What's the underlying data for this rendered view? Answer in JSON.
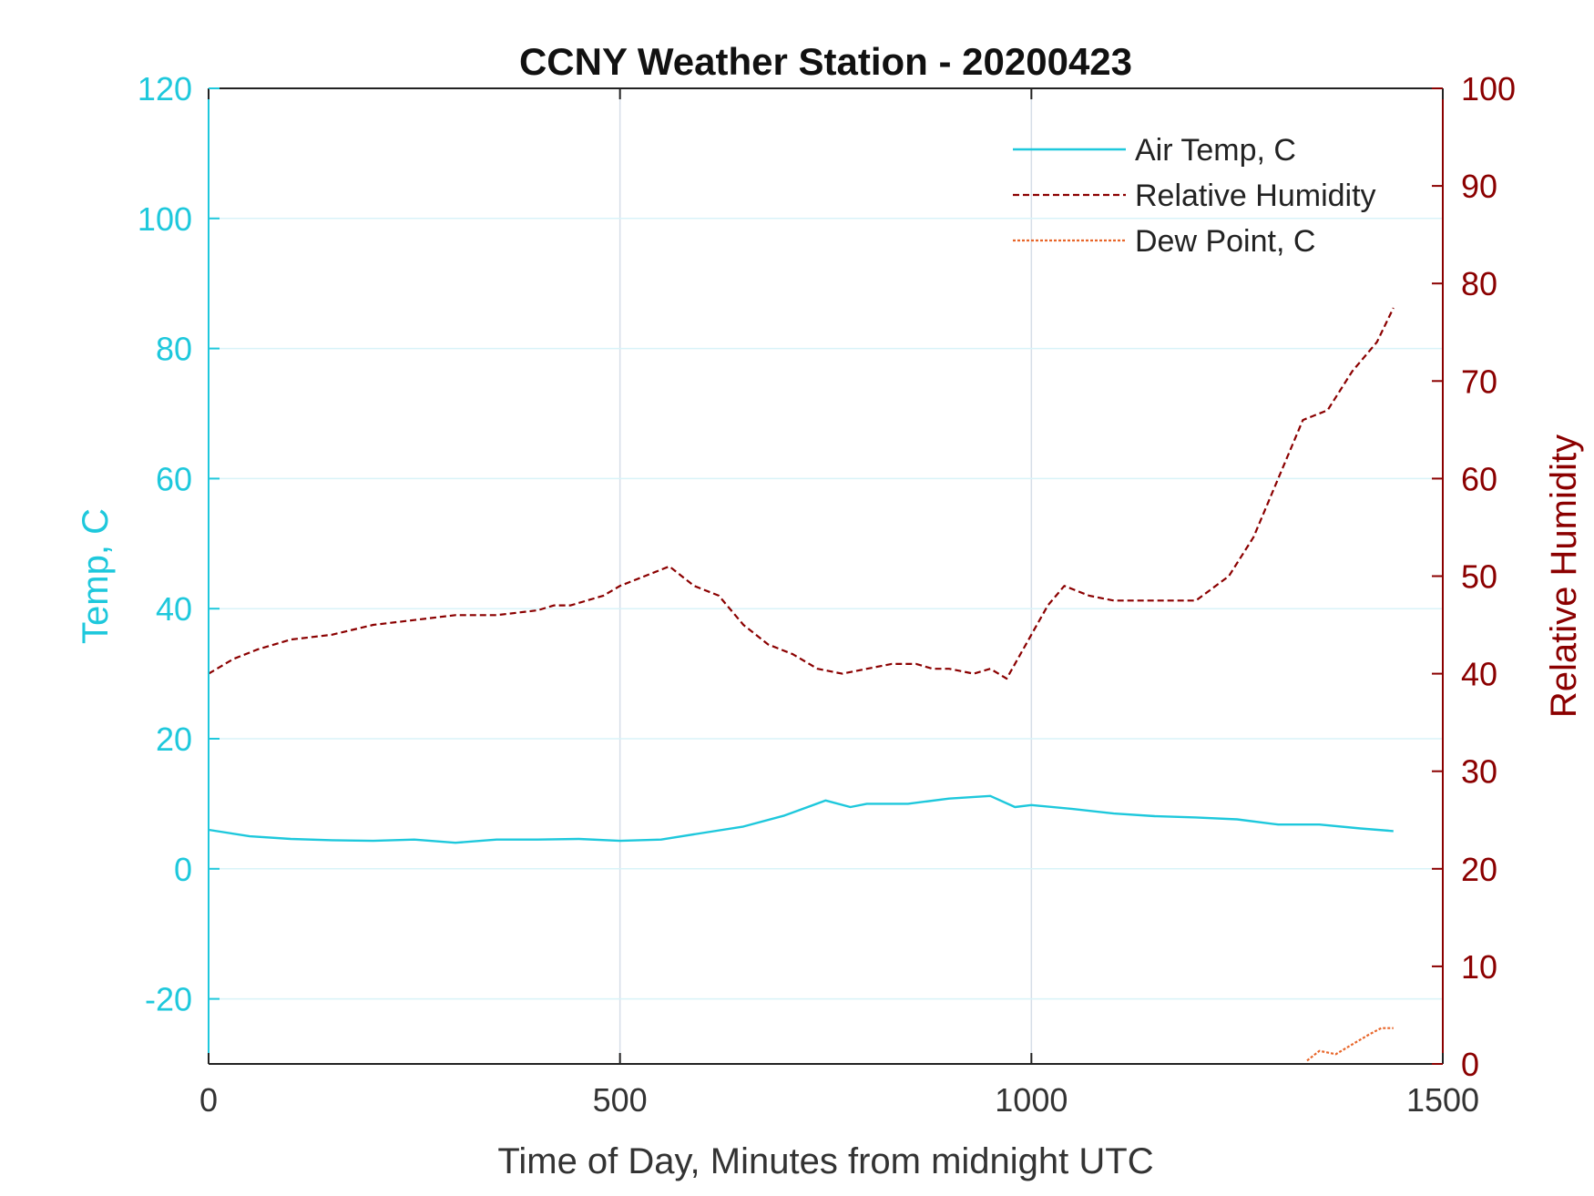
{
  "chart_data": {
    "type": "line",
    "title": "CCNY Weather Station - 20200423",
    "xlabel": "Time of Day, Minutes from midnight UTC",
    "ylabel_left": "Temp, C",
    "ylabel_right": "Relative Humidity",
    "xlim": [
      0,
      1500
    ],
    "ylim_left": [
      -30,
      120
    ],
    "ylim_right": [
      0,
      100
    ],
    "x_ticks": [
      "0",
      "500",
      "1000",
      "1500"
    ],
    "y_left_ticks": [
      "-20",
      "0",
      "20",
      "40",
      "60",
      "80",
      "100",
      "120"
    ],
    "y_right_ticks": [
      "0",
      "10",
      "20",
      "30",
      "40",
      "50",
      "60",
      "70",
      "80",
      "90",
      "100"
    ],
    "grid": true,
    "legend_location": "top-right",
    "colors": {
      "left_axis": "#1ec8dc",
      "right_axis": "#8b0000",
      "air_temp": "#1ec8dc",
      "rh": "#8b0000",
      "dew_point": "#e8662a",
      "grid": "#d6dee8"
    },
    "series": [
      {
        "name": "Air Temp, C",
        "axis": "left",
        "style": "solid",
        "x": [
          0,
          50,
          100,
          150,
          200,
          250,
          300,
          350,
          400,
          450,
          500,
          550,
          600,
          650,
          700,
          750,
          780,
          800,
          850,
          900,
          950,
          980,
          1000,
          1050,
          1100,
          1150,
          1200,
          1250,
          1300,
          1350,
          1400,
          1440
        ],
        "y": [
          6,
          5,
          4.6,
          4.4,
          4.3,
          4.5,
          4,
          4.5,
          4.5,
          4.6,
          4.3,
          4.5,
          5.5,
          6.5,
          8.2,
          10.5,
          9.5,
          10,
          10,
          10.8,
          11.2,
          9.5,
          9.8,
          9.2,
          8.5,
          8.1,
          7.9,
          7.6,
          6.8,
          6.8,
          6.2,
          5.8
        ]
      },
      {
        "name": "Relative Humidity",
        "axis": "right",
        "style": "dashed",
        "x": [
          0,
          30,
          60,
          100,
          150,
          200,
          250,
          300,
          350,
          400,
          420,
          440,
          480,
          500,
          530,
          560,
          590,
          620,
          650,
          680,
          710,
          740,
          770,
          800,
          830,
          860,
          880,
          900,
          930,
          950,
          970,
          1000,
          1020,
          1040,
          1070,
          1100,
          1150,
          1200,
          1240,
          1270,
          1300,
          1330,
          1360,
          1390,
          1420,
          1440
        ],
        "y": [
          40,
          41.5,
          42.5,
          43.5,
          44,
          45,
          45.5,
          46,
          46,
          46.5,
          47,
          47,
          48,
          49,
          50,
          51,
          49,
          48,
          45,
          43,
          42,
          40.5,
          40,
          40.5,
          41,
          41,
          40.5,
          40.5,
          40,
          40.5,
          39.5,
          44,
          47,
          49,
          48,
          47.5,
          47.5,
          47.5,
          50,
          54,
          60,
          66,
          67,
          71,
          74,
          77.5
        ]
      },
      {
        "name": "Dew Point, C",
        "axis": "left",
        "style": "dotted",
        "x": [
          1335,
          1350,
          1370,
          1390,
          1410,
          1425,
          1440
        ],
        "y": [
          -29.5,
          -28,
          -28.5,
          -27,
          -25.5,
          -24.5,
          -24.5
        ]
      }
    ]
  }
}
